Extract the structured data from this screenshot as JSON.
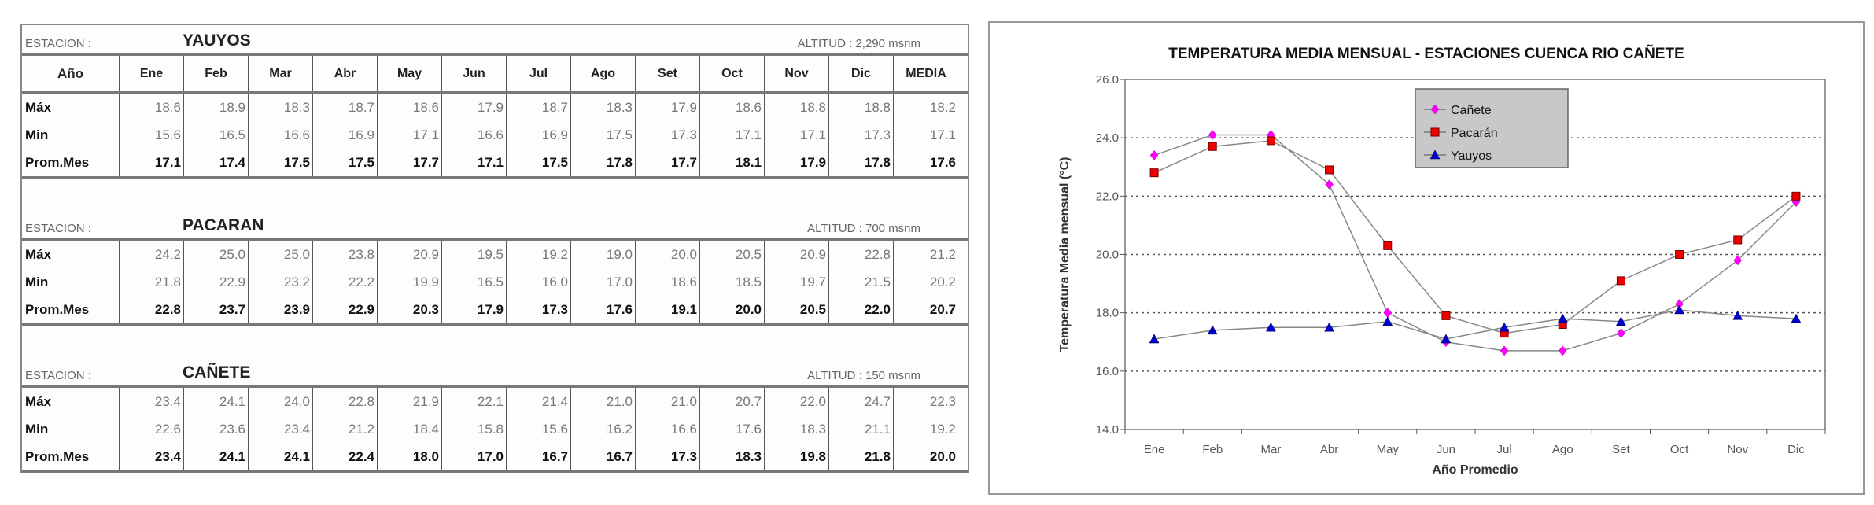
{
  "table": {
    "station_label": "ESTACION :",
    "columns": [
      "Año",
      "Ene",
      "Feb",
      "Mar",
      "Abr",
      "May",
      "Jun",
      "Jul",
      "Ago",
      "Set",
      "Oct",
      "Nov",
      "Dic",
      "MEDIA"
    ],
    "stations": [
      {
        "name": "YAUYOS",
        "altitude": "ALTITUD : 2,290 msnm",
        "show_header": true,
        "rows": [
          {
            "label": "Máx",
            "values": [
              "18.6",
              "18.9",
              "18.3",
              "18.7",
              "18.6",
              "17.9",
              "18.7",
              "18.3",
              "17.9",
              "18.6",
              "18.8",
              "18.8",
              "18.2"
            ]
          },
          {
            "label": "Min",
            "values": [
              "15.6",
              "16.5",
              "16.6",
              "16.9",
              "17.1",
              "16.6",
              "16.9",
              "17.5",
              "17.3",
              "17.1",
              "17.1",
              "17.3",
              "17.1"
            ]
          },
          {
            "label": "Prom.Mes",
            "values": [
              "17.1",
              "17.4",
              "17.5",
              "17.5",
              "17.7",
              "17.1",
              "17.5",
              "17.8",
              "17.7",
              "18.1",
              "17.9",
              "17.8",
              "17.6"
            ]
          }
        ]
      },
      {
        "name": "PACARAN",
        "altitude": "ALTITUD : 700 msnm",
        "show_header": false,
        "rows": [
          {
            "label": "Máx",
            "values": [
              "24.2",
              "25.0",
              "25.0",
              "23.8",
              "20.9",
              "19.5",
              "19.2",
              "19.0",
              "20.0",
              "20.5",
              "20.9",
              "22.8",
              "21.2"
            ]
          },
          {
            "label": "Min",
            "values": [
              "21.8",
              "22.9",
              "23.2",
              "22.2",
              "19.9",
              "16.5",
              "16.0",
              "17.0",
              "18.6",
              "18.5",
              "19.7",
              "21.5",
              "20.2"
            ]
          },
          {
            "label": "Prom.Mes",
            "values": [
              "22.8",
              "23.7",
              "23.9",
              "22.9",
              "20.3",
              "17.9",
              "17.3",
              "17.6",
              "19.1",
              "20.0",
              "20.5",
              "22.0",
              "20.7"
            ]
          }
        ]
      },
      {
        "name": "CAÑETE",
        "altitude": "ALTITUD : 150 msnm",
        "show_header": false,
        "rows": [
          {
            "label": "Máx",
            "values": [
              "23.4",
              "24.1",
              "24.0",
              "22.8",
              "21.9",
              "22.1",
              "21.4",
              "21.0",
              "21.0",
              "20.7",
              "22.0",
              "24.7",
              "22.3"
            ]
          },
          {
            "label": "Min",
            "values": [
              "22.6",
              "23.6",
              "23.4",
              "21.2",
              "18.4",
              "15.8",
              "15.6",
              "16.2",
              "16.6",
              "17.6",
              "18.3",
              "21.1",
              "19.2"
            ]
          },
          {
            "label": "Prom.Mes",
            "values": [
              "23.4",
              "24.1",
              "24.1",
              "22.4",
              "18.0",
              "17.0",
              "16.7",
              "16.7",
              "17.3",
              "18.3",
              "19.8",
              "21.8",
              "20.0"
            ]
          }
        ]
      }
    ]
  },
  "chart_data": {
    "type": "line",
    "title": "TEMPERATURA MEDIA MENSUAL - ESTACIONES CUENCA RIO CAÑETE",
    "xlabel": "Año Promedio",
    "ylabel": "Temperatura Media mensual  (°C)",
    "categories": [
      "Ene",
      "Feb",
      "Mar",
      "Abr",
      "May",
      "Jun",
      "Jul",
      "Ago",
      "Set",
      "Oct",
      "Nov",
      "Dic"
    ],
    "ylim": [
      14,
      26
    ],
    "yticks": [
      "14.0",
      "16.0",
      "18.0",
      "20.0",
      "22.0",
      "24.0",
      "26.0"
    ],
    "grid": "horizontal dotted",
    "legend": "top-center",
    "series": [
      {
        "name": "Cañete",
        "marker": "diamond",
        "color": "#ff00ff",
        "values": [
          23.4,
          24.1,
          24.1,
          22.4,
          18.0,
          17.0,
          16.7,
          16.7,
          17.3,
          18.3,
          19.8,
          21.8
        ]
      },
      {
        "name": "Pacarán",
        "marker": "square",
        "color": "#ee0000",
        "values": [
          22.8,
          23.7,
          23.9,
          22.9,
          20.3,
          17.9,
          17.3,
          17.6,
          19.1,
          20.0,
          20.5,
          22.0
        ]
      },
      {
        "name": "Yauyos",
        "marker": "triangle",
        "color": "#0000cc",
        "values": [
          17.1,
          17.4,
          17.5,
          17.5,
          17.7,
          17.1,
          17.5,
          17.8,
          17.7,
          18.1,
          17.9,
          17.8
        ]
      }
    ]
  }
}
